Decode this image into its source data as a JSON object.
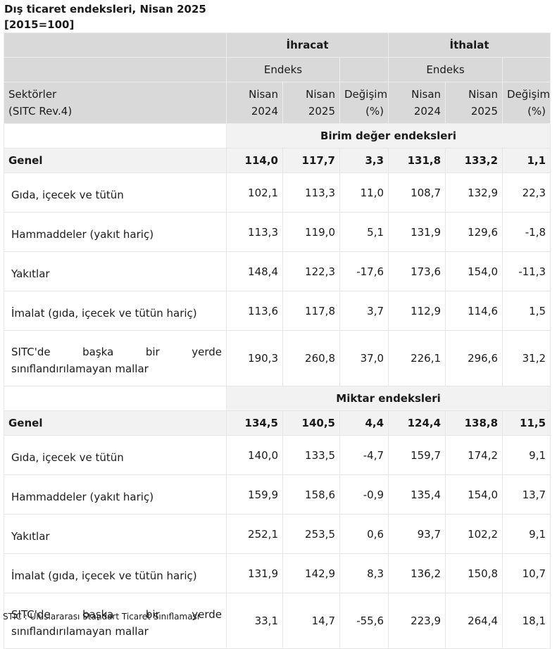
{
  "title": "Dış ticaret endeksleri, Nisan 2025",
  "subtitle": "[2015=100]",
  "header": {
    "export": "İhracat",
    "import": "İthalat",
    "endeks": "Endeks",
    "sektorler_line1": "Sektörler",
    "sektorler_line2": "(SITC Rev.4)",
    "col_nisan": "Nisan",
    "col_2024": "2024",
    "col_2025": "2025",
    "col_change": "Değişim",
    "col_pct": "(%)"
  },
  "sections": [
    {
      "title": "Birim değer endeksleri",
      "genel": {
        "label": "Genel",
        "values": [
          "114,0",
          "117,7",
          "3,3",
          "131,8",
          "133,2",
          "1,1"
        ]
      },
      "rows": [
        {
          "label": "Gıda, içecek ve tütün",
          "values": [
            "102,1",
            "113,3",
            "11,0",
            "108,7",
            "132,9",
            "22,3"
          ]
        },
        {
          "label": "Hammaddeler (yakıt hariç)",
          "values": [
            "113,3",
            "119,0",
            "5,1",
            "131,9",
            "129,6",
            "-1,8"
          ]
        },
        {
          "label": "Yakıtlar",
          "values": [
            "148,4",
            "122,3",
            "-17,6",
            "173,6",
            "154,0",
            "-11,3"
          ]
        },
        {
          "label": "İmalat (gıda, içecek ve tütün hariç)",
          "values": [
            "113,6",
            "117,8",
            "3,7",
            "112,9",
            "114,6",
            "1,5"
          ]
        },
        {
          "label_line1": [
            "SITC'de",
            "başka",
            "bir",
            "yerde"
          ],
          "label_line2": "sınıflandırılamayan mallar",
          "values": [
            "190,3",
            "260,8",
            "37,0",
            "226,1",
            "296,6",
            "31,2"
          ]
        }
      ]
    },
    {
      "title": "Miktar endeksleri",
      "genel": {
        "label": "Genel",
        "values": [
          "134,5",
          "140,5",
          "4,4",
          "124,4",
          "138,8",
          "11,5"
        ]
      },
      "rows": [
        {
          "label": "Gıda, içecek ve tütün",
          "values": [
            "140,0",
            "133,5",
            "-4,7",
            "159,7",
            "174,2",
            "9,1"
          ]
        },
        {
          "label": "Hammaddeler (yakıt hariç)",
          "values": [
            "159,9",
            "158,6",
            "-0,9",
            "135,4",
            "154,0",
            "13,7"
          ]
        },
        {
          "label": "Yakıtlar",
          "values": [
            "252,1",
            "253,5",
            "0,6",
            "93,7",
            "102,2",
            "9,1"
          ]
        },
        {
          "label": "İmalat (gıda, içecek ve tütün hariç)",
          "values": [
            "131,9",
            "142,9",
            "8,3",
            "136,2",
            "150,8",
            "10,7"
          ]
        },
        {
          "label_line1": [
            "SITC'de",
            "başka",
            "bir",
            "yerde"
          ],
          "label_line2": "sınıflandırılamayan mallar",
          "values": [
            "33,1",
            "14,7",
            "-55,6",
            "223,9",
            "264,4",
            "18,1"
          ]
        }
      ]
    }
  ],
  "footnote": "STIC : Uluslararası Standart Ticaret Sınıflaması"
}
